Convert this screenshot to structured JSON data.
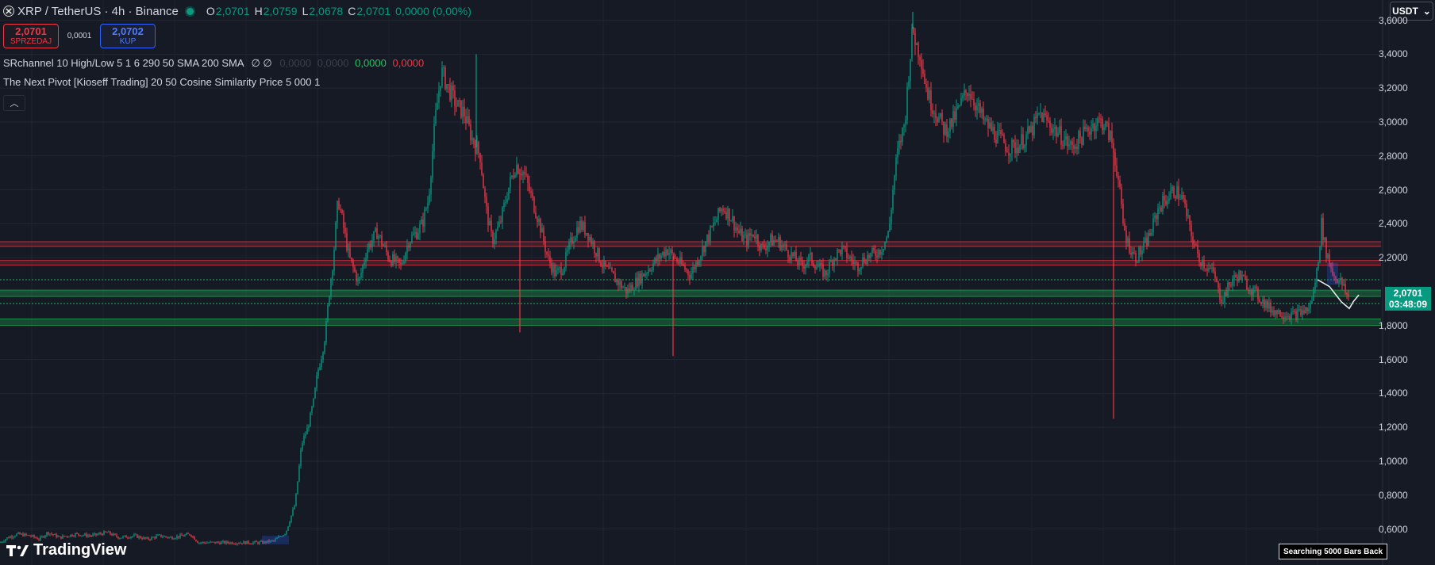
{
  "header": {
    "title": "XRP / TetherUS · 4h · Binance",
    "ohlc": [
      {
        "k": "O",
        "v": "2,0701"
      },
      {
        "k": "H",
        "v": "2,0759"
      },
      {
        "k": "L",
        "v": "2,0678"
      },
      {
        "k": "C",
        "v": "2,0701"
      }
    ],
    "change": "0,0000 (0,00%)"
  },
  "trade": {
    "sell_price": "2,0701",
    "sell_label": "SPRZEDAJ",
    "spread": "0,0001",
    "buy_price": "2,0702",
    "buy_label": "KUP"
  },
  "indicators": {
    "sr_label": "SRchannel 10 High/Low 5 1 6 290 50 SMA 200 SMA",
    "sr_symbols": "∅ ∅",
    "sr_values": [
      "0,0000",
      "0,0000",
      "0,0000",
      "0,0000"
    ],
    "pivot_label": "The Next Pivot [Kioseff Trading] 20 50 Cosine Similarity Price 5 000 1"
  },
  "currency_selector": "USDT",
  "y_axis_labels": [
    "3,6000",
    "3,4000",
    "3,2000",
    "3,0000",
    "2,8000",
    "2,6000",
    "2,4000",
    "2,2000",
    "1,8000",
    "1,6000",
    "1,4000",
    "1,2000",
    "1,0000",
    "0,8000",
    "0,6000"
  ],
  "price_tag": {
    "price": "2,0701",
    "countdown": "03:48:09"
  },
  "search_badge": "Searching 5000 Bars Back",
  "logo_text": "TradingView",
  "colors": {
    "up": "#089981",
    "down": "#f23645",
    "background": "#161a25",
    "resistance": "#f23645",
    "support": "#22c55e"
  },
  "chart_data": {
    "type": "candlestick",
    "symbol": "XRP/USDT",
    "timeframe": "4h",
    "ylim": [
      0.5,
      3.7
    ],
    "y_ticks": [
      0.6,
      0.8,
      1.0,
      1.2,
      1.4,
      1.6,
      1.8,
      2.0,
      2.2,
      2.4,
      2.6,
      2.8,
      3.0,
      3.2,
      3.4,
      3.6
    ],
    "last_price": 2.0701,
    "resistance_levels": [
      2.28,
      2.17
    ],
    "support_levels": [
      1.99,
      1.82
    ],
    "dashed_levels": [
      2.07,
      1.93
    ],
    "price_path": [
      [
        0,
        0.52
      ],
      [
        10,
        0.55
      ],
      [
        22,
        0.57
      ],
      [
        38,
        0.56
      ],
      [
        50,
        0.54
      ],
      [
        60,
        0.58
      ],
      [
        75,
        0.55
      ],
      [
        95,
        0.57
      ],
      [
        115,
        0.56
      ],
      [
        135,
        0.58
      ],
      [
        150,
        0.55
      ],
      [
        170,
        0.56
      ],
      [
        185,
        0.54
      ],
      [
        200,
        0.56
      ],
      [
        215,
        0.55
      ],
      [
        230,
        0.56
      ],
      [
        240,
        0.57
      ],
      [
        250,
        0.52
      ],
      [
        270,
        0.52
      ],
      [
        300,
        0.52
      ],
      [
        330,
        0.52
      ],
      [
        345,
        0.53
      ],
      [
        360,
        0.58
      ],
      [
        372,
        0.75
      ],
      [
        380,
        1.1
      ],
      [
        388,
        1.2
      ],
      [
        395,
        1.35
      ],
      [
        400,
        1.52
      ],
      [
        405,
        1.62
      ],
      [
        410,
        1.75
      ],
      [
        415,
        2.0
      ],
      [
        420,
        2.2
      ],
      [
        426,
        2.55
      ],
      [
        432,
        2.4
      ],
      [
        440,
        2.2
      ],
      [
        452,
        2.05
      ],
      [
        462,
        2.25
      ],
      [
        475,
        2.35
      ],
      [
        490,
        2.2
      ],
      [
        505,
        2.15
      ],
      [
        515,
        2.3
      ],
      [
        525,
        2.35
      ],
      [
        532,
        2.4
      ],
      [
        540,
        2.55
      ],
      [
        548,
        3.0
      ],
      [
        556,
        3.3
      ],
      [
        565,
        3.2
      ],
      [
        575,
        3.1
      ],
      [
        585,
        3.05
      ],
      [
        595,
        2.9
      ],
      [
        605,
        2.8
      ],
      [
        612,
        2.5
      ],
      [
        620,
        2.3
      ],
      [
        630,
        2.4
      ],
      [
        640,
        2.6
      ],
      [
        650,
        2.75
      ],
      [
        660,
        2.7
      ],
      [
        670,
        2.55
      ],
      [
        680,
        2.4
      ],
      [
        690,
        2.2
      ],
      [
        700,
        2.1
      ],
      [
        710,
        2.15
      ],
      [
        720,
        2.3
      ],
      [
        730,
        2.4
      ],
      [
        740,
        2.35
      ],
      [
        750,
        2.25
      ],
      [
        760,
        2.15
      ],
      [
        770,
        2.1
      ],
      [
        780,
        2.05
      ],
      [
        790,
        2.0
      ],
      [
        800,
        2.05
      ],
      [
        810,
        2.1
      ],
      [
        820,
        2.15
      ],
      [
        830,
        2.2
      ],
      [
        840,
        2.25
      ],
      [
        850,
        2.2
      ],
      [
        860,
        2.15
      ],
      [
        870,
        2.1
      ],
      [
        880,
        2.2
      ],
      [
        890,
        2.3
      ],
      [
        900,
        2.4
      ],
      [
        910,
        2.5
      ],
      [
        920,
        2.45
      ],
      [
        930,
        2.35
      ],
      [
        940,
        2.3
      ],
      [
        950,
        2.35
      ],
      [
        960,
        2.25
      ],
      [
        970,
        2.3
      ],
      [
        980,
        2.3
      ],
      [
        990,
        2.25
      ],
      [
        1000,
        2.2
      ],
      [
        1010,
        2.15
      ],
      [
        1020,
        2.2
      ],
      [
        1030,
        2.15
      ],
      [
        1040,
        2.1
      ],
      [
        1050,
        2.2
      ],
      [
        1060,
        2.25
      ],
      [
        1070,
        2.2
      ],
      [
        1080,
        2.15
      ],
      [
        1090,
        2.2
      ],
      [
        1100,
        2.22
      ],
      [
        1110,
        2.25
      ],
      [
        1120,
        2.35
      ],
      [
        1125,
        2.6
      ],
      [
        1130,
        2.8
      ],
      [
        1135,
        2.9
      ],
      [
        1140,
        3.0
      ],
      [
        1145,
        3.3
      ],
      [
        1150,
        3.55
      ],
      [
        1155,
        3.45
      ],
      [
        1160,
        3.4
      ],
      [
        1165,
        3.25
      ],
      [
        1170,
        3.15
      ],
      [
        1180,
        3.05
      ],
      [
        1190,
        2.95
      ],
      [
        1200,
        3.0
      ],
      [
        1210,
        3.1
      ],
      [
        1220,
        3.2
      ],
      [
        1230,
        3.1
      ],
      [
        1240,
        3.0
      ],
      [
        1250,
        2.95
      ],
      [
        1260,
        2.9
      ],
      [
        1270,
        2.85
      ],
      [
        1280,
        2.85
      ],
      [
        1290,
        2.9
      ],
      [
        1300,
        2.95
      ],
      [
        1310,
        3.05
      ],
      [
        1320,
        3.0
      ],
      [
        1330,
        2.95
      ],
      [
        1340,
        2.9
      ],
      [
        1350,
        2.85
      ],
      [
        1360,
        2.9
      ],
      [
        1370,
        2.95
      ],
      [
        1380,
        3.0
      ],
      [
        1390,
        3.0
      ],
      [
        1400,
        2.9
      ],
      [
        1408,
        2.7
      ],
      [
        1415,
        2.4
      ],
      [
        1420,
        2.3
      ],
      [
        1430,
        2.2
      ],
      [
        1440,
        2.25
      ],
      [
        1450,
        2.35
      ],
      [
        1460,
        2.5
      ],
      [
        1470,
        2.55
      ],
      [
        1480,
        2.6
      ],
      [
        1490,
        2.55
      ],
      [
        1495,
        2.45
      ],
      [
        1500,
        2.35
      ],
      [
        1510,
        2.2
      ],
      [
        1520,
        2.15
      ],
      [
        1530,
        2.1
      ],
      [
        1535,
        2.0
      ],
      [
        1540,
        1.95
      ],
      [
        1550,
        2.05
      ],
      [
        1560,
        2.1
      ],
      [
        1570,
        2.05
      ],
      [
        1580,
        2.0
      ],
      [
        1590,
        1.95
      ],
      [
        1600,
        1.9
      ],
      [
        1610,
        1.88
      ],
      [
        1620,
        1.87
      ],
      [
        1630,
        1.86
      ],
      [
        1640,
        1.88
      ],
      [
        1650,
        1.9
      ],
      [
        1655,
        2.0
      ],
      [
        1660,
        2.15
      ],
      [
        1665,
        2.4
      ],
      [
        1670,
        2.25
      ],
      [
        1680,
        2.1
      ],
      [
        1690,
        2.05
      ],
      [
        1700,
        1.95
      ],
      [
        1710,
        1.9
      ]
    ],
    "wicks": [
      {
        "x": 655,
        "low": 1.76
      },
      {
        "x": 848,
        "low": 1.62
      },
      {
        "x": 1403,
        "low": 1.25
      },
      {
        "x": 1150,
        "high": 3.65
      },
      {
        "x": 600,
        "high": 3.4
      }
    ]
  }
}
